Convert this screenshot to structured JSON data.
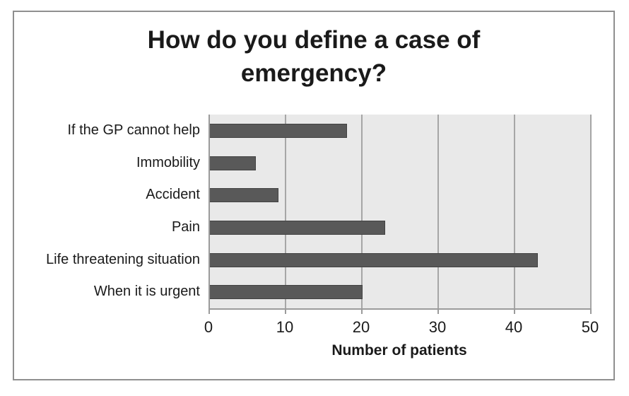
{
  "chart_data": {
    "type": "bar",
    "orientation": "horizontal",
    "title": "How do you define a case of emergency?",
    "xlabel": "Number of patients",
    "ylabel": "",
    "categories": [
      "If the GP cannot help",
      "Immobility",
      "Accident",
      "Pain",
      "Life threatening situation",
      "When it is urgent"
    ],
    "values": [
      18,
      6,
      9,
      23,
      43,
      20
    ],
    "xlim": [
      0,
      50
    ],
    "xticks": [
      0,
      10,
      20,
      30,
      40,
      50
    ],
    "grid": "vertical-gridlines-on",
    "legend": "none",
    "colors": {
      "bar_fill": "#595959",
      "bar_border": "#424242",
      "plot_bg": "#e9e9e9",
      "gridline": "#a6a6a6",
      "axis_line": "#9b9b9b",
      "frame_border": "#8f8f8f",
      "text_color": "#1a1a1a"
    }
  }
}
